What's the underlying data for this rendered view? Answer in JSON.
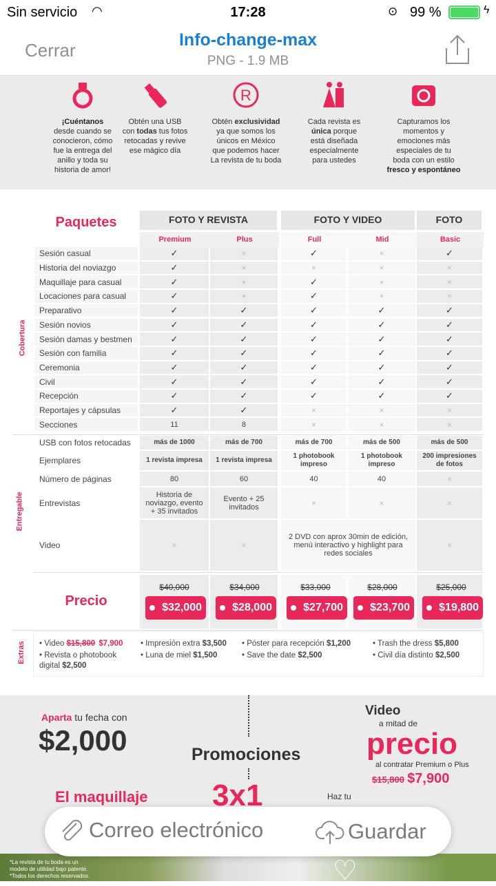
{
  "status": {
    "carrier": "Sin servicio",
    "time": "17:28",
    "battery": "99 %"
  },
  "nav": {
    "close": "Cerrar",
    "title": "Info-change-max",
    "subtitle": "PNG - 1.9 MB"
  },
  "features": [
    {
      "icon": "ring-icon",
      "lines": [
        "¡Cuéntanos",
        "desde cuando se",
        "conocieron, cómo",
        "fue la entrega del",
        "anillo y toda su",
        "historia de amor!"
      ]
    },
    {
      "icon": "usb-icon",
      "lines": [
        "Obtén una USB",
        "con todas tus fotos",
        "retocadas y revive",
        "ese mágico día"
      ]
    },
    {
      "icon": "registered-icon",
      "lines": [
        "Obtén exclusividad",
        "ya que somos los",
        "únicos en México",
        "que podemos hacer",
        "La revista de tu boda"
      ]
    },
    {
      "icon": "couple-icon",
      "lines": [
        "Cada revista es",
        "única porque",
        "está diseñada",
        "especialmente",
        "para ustedes"
      ]
    },
    {
      "icon": "camera-icon",
      "lines": [
        "Capturamos los",
        "momentos y",
        "emociones más",
        "especiales de tu",
        "boda con un estilo",
        "fresco y espontáneo"
      ]
    }
  ],
  "table": {
    "title": "Paquetes",
    "groups": [
      "FOTO Y REVISTA",
      "FOTO Y VIDEO",
      "FOTO"
    ],
    "packages": [
      "Premium",
      "Plus",
      "Full",
      "Mid",
      "Basic"
    ],
    "cobertura_label": "Cobertura",
    "cobertura": [
      {
        "label": "Sesión casual",
        "v": [
          "✓",
          "✗",
          "✓",
          "✗",
          "✓"
        ]
      },
      {
        "label": "Historia del noviazgo",
        "v": [
          "✓",
          "✗",
          "✗",
          "✗",
          "✗"
        ]
      },
      {
        "label": "Maquillaje para casual",
        "v": [
          "✓",
          "✗",
          "✓",
          "✗",
          "✗"
        ]
      },
      {
        "label": "Locaciones para casual",
        "v": [
          "✓",
          "✗",
          "✓",
          "✗",
          "✗"
        ]
      },
      {
        "label": "Preparativo",
        "v": [
          "✓",
          "✓",
          "✓",
          "✓",
          "✓"
        ]
      },
      {
        "label": "Sesión novios",
        "v": [
          "✓",
          "✓",
          "✓",
          "✓",
          "✓"
        ]
      },
      {
        "label": "Sesión damas y bestmen",
        "v": [
          "✓",
          "✓",
          "✓",
          "✓",
          "✓"
        ]
      },
      {
        "label": "Sesión con familia",
        "v": [
          "✓",
          "✓",
          "✓",
          "✓",
          "✓"
        ]
      },
      {
        "label": "Ceremonia",
        "v": [
          "✓",
          "✓",
          "✓",
          "✓",
          "✓"
        ]
      },
      {
        "label": "Civil",
        "v": [
          "✓",
          "✓",
          "✓",
          "✓",
          "✓"
        ]
      },
      {
        "label": "Recepción",
        "v": [
          "✓",
          "✓",
          "✓",
          "✓",
          "✓"
        ]
      },
      {
        "label": "Reportajes y cápsulas",
        "v": [
          "✓",
          "✓",
          "✗",
          "✗",
          "✗"
        ]
      },
      {
        "label": "Secciones",
        "v": [
          "11",
          "8",
          "✗",
          "✗",
          "✗"
        ]
      }
    ],
    "entregable_label": "Entregable",
    "entregable": [
      {
        "label": "USB con fotos retocadas",
        "v": [
          "más de 1000",
          "más de 700",
          "más de 700",
          "más de 500",
          "más de 500"
        ]
      },
      {
        "label": "Ejemplares",
        "v": [
          "1 revista impresa",
          "1 revista impresa",
          "1 photobook impreso",
          "1 photobook impreso",
          "200 impresiones de fotos"
        ]
      },
      {
        "label": "Número de páginas",
        "v": [
          "80",
          "60",
          "40",
          "40",
          "✗"
        ]
      },
      {
        "label": "Entrevistas",
        "v": [
          "Historia de noviazgo, evento + 35 invitados",
          "Evento + 25 invitados",
          "✗",
          "✗",
          "✗"
        ]
      },
      {
        "label": "Video",
        "v": [
          "✗",
          "✗",
          "2 DVD con aprox 30min de edición, menú interactivo y highlight para redes sociales",
          "",
          "✗"
        ]
      }
    ],
    "price_label": "Precio",
    "old_prices": [
      "$40,000",
      "$34,000",
      "$33,000",
      "$28,000",
      "$25,000"
    ],
    "prices": [
      "$32,000",
      "$28,000",
      "$27,700",
      "$23,700",
      "$19,800"
    ],
    "extras_label": "Extras",
    "extras": [
      [
        "• Video ",
        "$15,800",
        "$7,900"
      ],
      [
        "• Revista o photobook digital ",
        "$2,500"
      ],
      [
        "• Impresión extra ",
        "$3,500"
      ],
      [
        "• Luna de miel ",
        "$1,500"
      ],
      [
        "• Póster para recepción ",
        "$1,200"
      ],
      [
        "• Save the date ",
        "$2,500"
      ],
      [
        "• Trash the dress ",
        "$5,800"
      ],
      [
        "• Civil día distinto ",
        "$2,500"
      ]
    ]
  },
  "promo": {
    "aparta": "Aparta",
    "fecha": " tu fecha con",
    "deposit": "$2,000",
    "title": "Promociones",
    "video": "Video",
    "mitad": "a mitad de",
    "precio": "precio",
    "contratar": "al contratar Premium o Plus",
    "old": "$15,800",
    "new": "$7,900",
    "maquillaje": "El maquillaje",
    "tresx1": "3x1",
    "haztu": "Haz tu"
  },
  "footer_note": [
    "*La revista de tu boda es un",
    "modelo de utilidad bajo patente.",
    "*Todos los derechos reservados."
  ],
  "actions": {
    "email": "Correo electrónico",
    "save": "Guardar"
  },
  "colors": {
    "accent": "#e8285a",
    "nav_title": "#1a7fd4",
    "battery": "#4cd964"
  }
}
